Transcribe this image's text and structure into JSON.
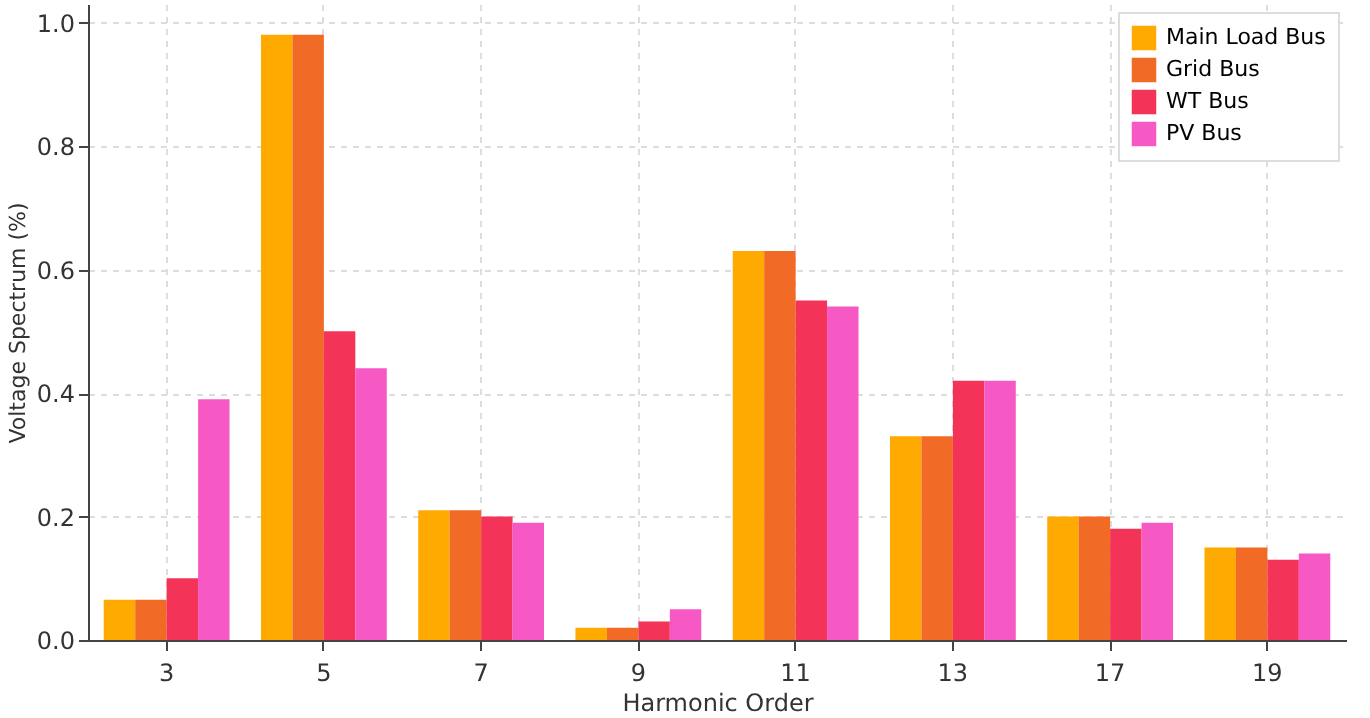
{
  "chart_data": {
    "type": "bar",
    "xlabel": "Harmonic Order",
    "ylabel": "Voltage Spectrum (%)",
    "categories": [
      "3",
      "5",
      "7",
      "9",
      "11",
      "13",
      "17",
      "19"
    ],
    "series": [
      {
        "name": "Main Load Bus",
        "color": "#ffaa00",
        "values": [
          0.065,
          0.98,
          0.21,
          0.02,
          0.63,
          0.33,
          0.2,
          0.15
        ]
      },
      {
        "name": "Grid Bus",
        "color": "#f26b26",
        "values": [
          0.065,
          0.98,
          0.21,
          0.02,
          0.63,
          0.33,
          0.2,
          0.15
        ]
      },
      {
        "name": "WT Bus",
        "color": "#f43358",
        "values": [
          0.1,
          0.5,
          0.2,
          0.03,
          0.55,
          0.42,
          0.18,
          0.13
        ]
      },
      {
        "name": "PV Bus",
        "color": "#f759c4",
        "values": [
          0.39,
          0.44,
          0.19,
          0.05,
          0.54,
          0.42,
          0.19,
          0.14
        ]
      }
    ],
    "ylim": [
      0,
      1.03
    ],
    "yticks": [
      {
        "value": 0,
        "label": "0.0"
      },
      0.2,
      0.4,
      0.6,
      0.8,
      {
        "value": 1,
        "label": "1.0"
      }
    ],
    "grid": true,
    "legend": "top right"
  }
}
